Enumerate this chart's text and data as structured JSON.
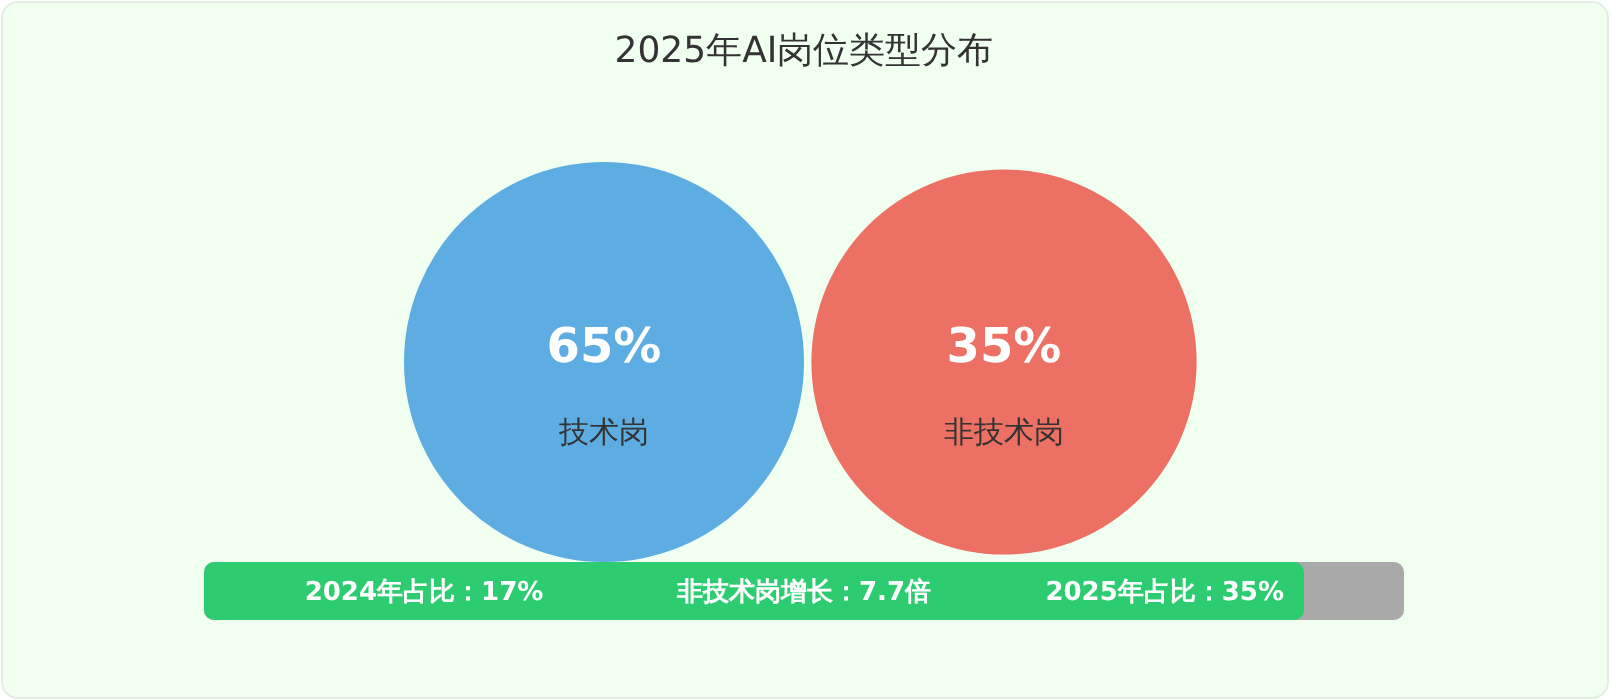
{
  "chart_data": {
    "type": "other",
    "title": "2025年AI岗位类型分布",
    "categories": [
      "技术岗",
      "非技术岗"
    ],
    "values": [
      65,
      35
    ],
    "value_labels": [
      "65%",
      "35%"
    ],
    "colors": [
      "#5dade2",
      "#ec7063"
    ],
    "annotations": [
      "2024年占比：17%",
      "非技术岗增长：7.7倍",
      "2025年占比：35%"
    ]
  }
}
